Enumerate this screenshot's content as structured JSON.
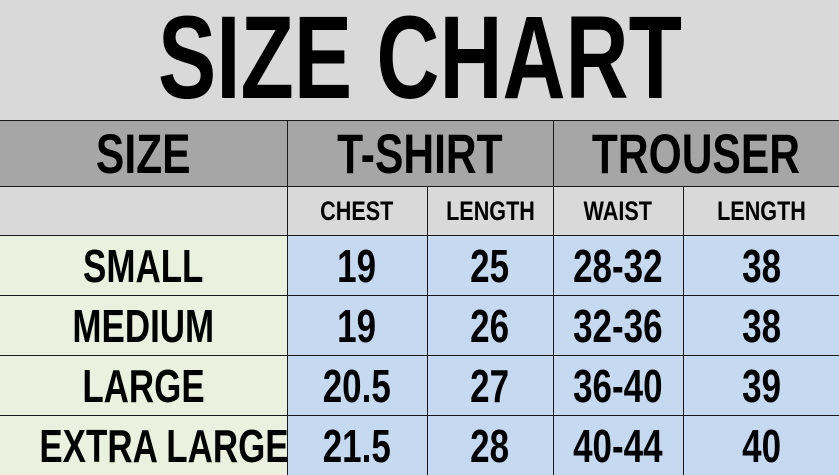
{
  "title": "SIZE CHART",
  "headers": {
    "size": "SIZE",
    "tshirt": "T-SHIRT",
    "trouser": "TROUSER",
    "sub": [
      "CHEST",
      "LENGTH",
      "WAIST",
      "LENGTH"
    ]
  },
  "rows": [
    {
      "size": "SMALL",
      "chest": "19",
      "tshirt_length": "25",
      "waist": "28-32",
      "trouser_length": "38"
    },
    {
      "size": "MEDIUM",
      "chest": "19",
      "tshirt_length": "26",
      "waist": "32-36",
      "trouser_length": "38"
    },
    {
      "size": "LARGE",
      "chest": "20.5",
      "tshirt_length": "27",
      "waist": "36-40",
      "trouser_length": "39"
    },
    {
      "size": "EXTRA LARGE",
      "chest": "21.5",
      "tshirt_length": "28",
      "waist": "40-44",
      "trouser_length": "40"
    }
  ],
  "colors": {
    "background": "#d9d9d9",
    "header": "#a6a6a6",
    "size_cells": "#ebf1de",
    "value_cells": "#c5d9f1"
  }
}
